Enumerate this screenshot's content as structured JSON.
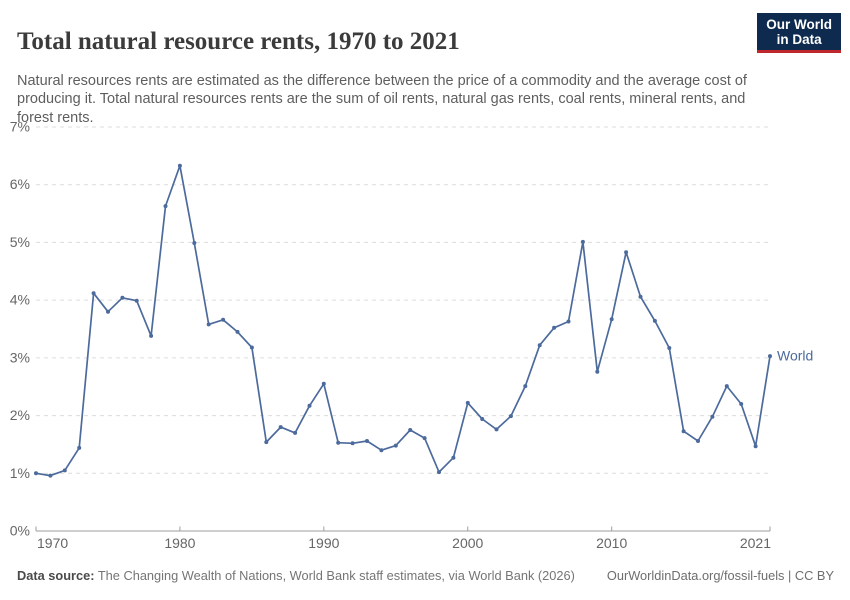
{
  "header": {
    "title": "Total natural resource rents, 1970 to 2021",
    "subtitle": "Natural resources rents are estimated as the difference between the price of a commodity and the average cost of producing it. Total natural resources rents are the sum of oil rents, natural gas rents, coal rents, mineral rents, and forest rents.",
    "logo": {
      "line1": "Our World",
      "line2": "in Data",
      "bg_color": "#0e2a4e",
      "accent_color": "#c0272d"
    }
  },
  "chart_data": {
    "type": "line",
    "title": "Total natural resource rents, 1970 to 2021",
    "xlabel": "",
    "ylabel": "",
    "xlim": [
      1970,
      2021
    ],
    "ylim": [
      0,
      7
    ],
    "grid": "horizontal-dashed",
    "legend_position": "end-of-line-label",
    "x": [
      1970,
      1971,
      1972,
      1973,
      1974,
      1975,
      1976,
      1977,
      1978,
      1979,
      1980,
      1981,
      1982,
      1983,
      1984,
      1985,
      1986,
      1987,
      1988,
      1989,
      1990,
      1991,
      1992,
      1993,
      1994,
      1995,
      1996,
      1997,
      1998,
      1999,
      2000,
      2001,
      2002,
      2003,
      2004,
      2005,
      2006,
      2007,
      2008,
      2009,
      2010,
      2011,
      2012,
      2013,
      2014,
      2015,
      2016,
      2017,
      2018,
      2019,
      2020,
      2021
    ],
    "series": [
      {
        "name": "World",
        "color": "#4C6A9C",
        "values": [
          1.0,
          0.96,
          1.05,
          1.44,
          4.12,
          3.8,
          4.04,
          3.99,
          3.38,
          5.63,
          6.33,
          4.99,
          3.58,
          3.66,
          3.45,
          3.18,
          1.54,
          1.8,
          1.7,
          2.17,
          2.55,
          1.53,
          1.52,
          1.56,
          1.4,
          1.48,
          1.75,
          1.61,
          1.02,
          1.27,
          2.22,
          1.94,
          1.76,
          1.99,
          2.51,
          3.22,
          3.52,
          3.63,
          5.01,
          2.76,
          3.67,
          4.83,
          4.06,
          3.64,
          3.17,
          1.73,
          1.56,
          1.98,
          2.51,
          2.2,
          1.47,
          3.03
        ]
      }
    ],
    "x_ticks": [
      1970,
      1980,
      1990,
      2000,
      2010,
      2021
    ],
    "y_ticks": [
      {
        "value": 0,
        "label": "0%"
      },
      {
        "value": 1,
        "label": "1%"
      },
      {
        "value": 2,
        "label": "2%"
      },
      {
        "value": 3,
        "label": "3%"
      },
      {
        "value": 4,
        "label": "4%"
      },
      {
        "value": 5,
        "label": "5%"
      },
      {
        "value": 6,
        "label": "6%"
      },
      {
        "value": 7,
        "label": "7%"
      }
    ],
    "colors": {
      "gridline": "#dcdcdc",
      "axis": "#9e9e9e",
      "tick_label": "#666666"
    }
  },
  "footer": {
    "datasource_label": "Data source:",
    "datasource_text": " The Changing Wealth of Nations, World Bank staff estimates, via World Bank (2026)",
    "link": "OurWorldinData.org/fossil-fuels",
    "separator": " | ",
    "license": "CC BY"
  }
}
